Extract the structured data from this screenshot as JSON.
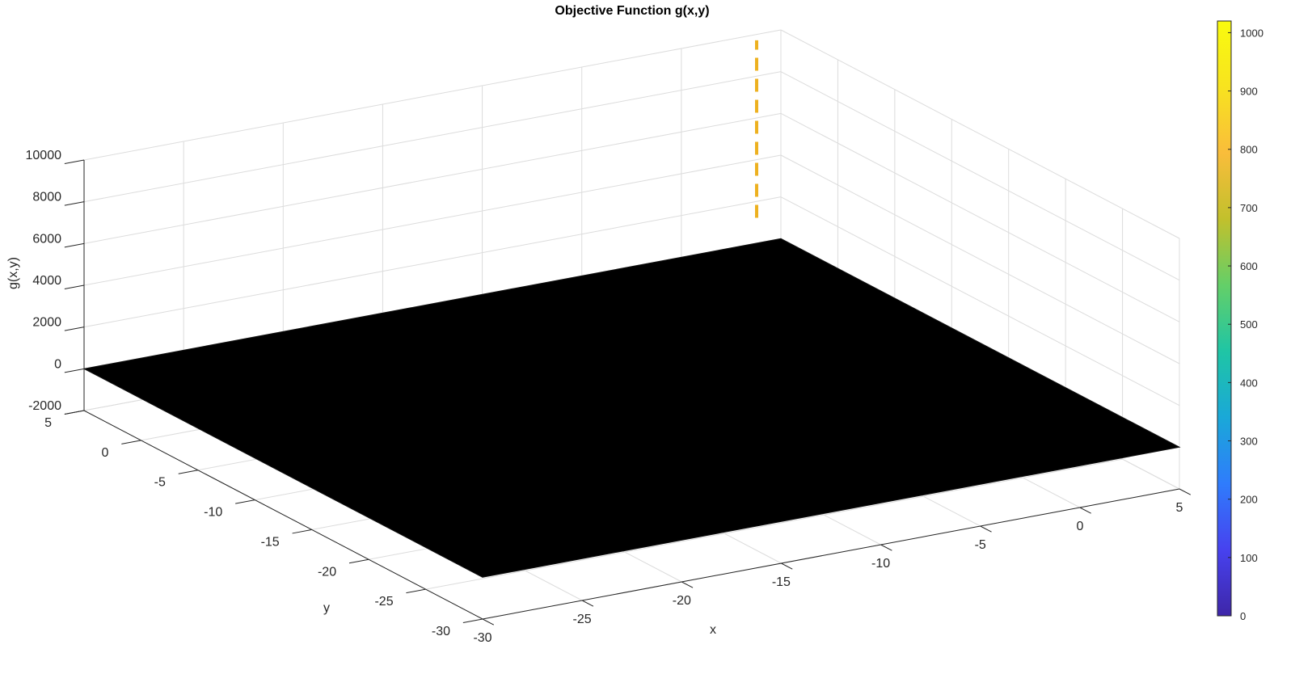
{
  "chart_data": {
    "type": "surface",
    "title": "Objective Function g(x,y)",
    "xlabel": "x",
    "ylabel": "y",
    "zlabel": "g(x,y)",
    "xlim": [
      -30,
      5
    ],
    "ylim": [
      -30,
      5
    ],
    "zlim": [
      -2000,
      10000
    ],
    "x_ticks": [
      "-30",
      "-25",
      "-20",
      "-15",
      "-10",
      "-5",
      "0",
      "5"
    ],
    "y_ticks": [
      "-30",
      "-25",
      "-20",
      "-15",
      "-10",
      "-5",
      "0",
      "5"
    ],
    "z_ticks": [
      "-2000",
      "0",
      "2000",
      "4000",
      "6000",
      "8000",
      "10000"
    ],
    "grid": true,
    "surface": {
      "color": "#000000",
      "corners": [
        {
          "x": -30,
          "y": -30,
          "z": 0
        },
        {
          "x": 5,
          "y": -30,
          "z": 0
        },
        {
          "x": 5,
          "y": 5,
          "z": 0
        },
        {
          "x": -30,
          "y": 5,
          "z": 0
        }
      ]
    },
    "marker_line": {
      "color": "#edb120",
      "style": "dashed",
      "x": 5,
      "y": 5,
      "z_range": [
        1000,
        9500
      ]
    },
    "colorbar": {
      "range": [
        0,
        1020
      ],
      "ticks": [
        "0",
        "100",
        "200",
        "300",
        "400",
        "500",
        "600",
        "700",
        "800",
        "900",
        "1000"
      ],
      "colormap": "parula",
      "stops": [
        "#3e26a8",
        "#4742ef",
        "#2f7cfc",
        "#1aa8d8",
        "#1fc5a5",
        "#64cf68",
        "#c2c02c",
        "#f9bd3b",
        "#f8e31f",
        "#f9fb0e"
      ]
    }
  }
}
